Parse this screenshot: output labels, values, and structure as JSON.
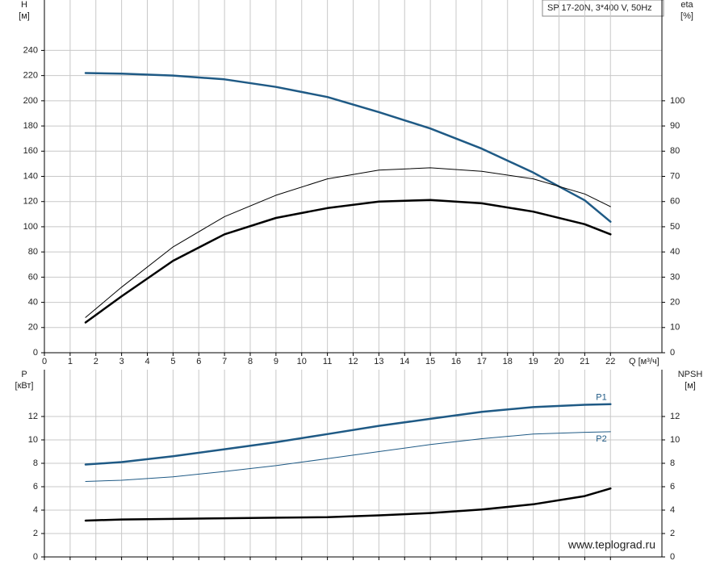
{
  "watermark": "www.teplograd.ru",
  "chart_data": [
    {
      "type": "line",
      "title": "SP 17-20N, 3*400 V, 50Hz",
      "xlabel": "Q [м³/ч]",
      "ylabel": "H",
      "yunit": "[м]",
      "y2label": "eta",
      "y2unit": "[%]",
      "x": [
        1.6,
        3,
        5,
        7,
        9,
        11,
        13,
        15,
        17,
        19,
        21,
        22
      ],
      "xlim": [
        0,
        24
      ],
      "xticks": [
        0,
        1,
        2,
        3,
        4,
        5,
        6,
        7,
        8,
        9,
        10,
        11,
        12,
        13,
        14,
        15,
        16,
        17,
        18,
        19,
        20,
        21,
        22
      ],
      "ylim": [
        0,
        280
      ],
      "yticks": [
        0,
        20,
        40,
        60,
        80,
        100,
        120,
        140,
        160,
        180,
        200,
        220,
        240
      ],
      "y2lim": [
        0,
        140
      ],
      "y2ticks": [
        0,
        10,
        20,
        30,
        40,
        50,
        60,
        70,
        80,
        90,
        100
      ],
      "grid": true,
      "series": [
        {
          "color": "#1f5a85",
          "linewidth": 2.5,
          "values": [
            222,
            221.5,
            220,
            217,
            211,
            203,
            191,
            178,
            162,
            143,
            121,
            104
          ]
        },
        {
          "color": "#000000",
          "linewidth": 1,
          "axis": "y2",
          "values": [
            14,
            26,
            42,
            54,
            62.5,
            69,
            72.5,
            73.4,
            72,
            69,
            63,
            58
          ]
        },
        {
          "color": "#000000",
          "linewidth": 2.5,
          "axis": "y2",
          "values": [
            12,
            22.4,
            36.5,
            47,
            53.5,
            57.4,
            60,
            60.6,
            59.3,
            56,
            51,
            47
          ]
        }
      ]
    },
    {
      "type": "line",
      "ylabel": "P",
      "yunit": "[кВт]",
      "y2label": "NPSH",
      "y2unit": "[м]",
      "x": [
        1.6,
        3,
        5,
        7,
        9,
        11,
        13,
        15,
        17,
        19,
        21,
        22
      ],
      "xlim": [
        0,
        24
      ],
      "xticks": [
        0,
        1,
        2,
        3,
        4,
        5,
        6,
        7,
        8,
        9,
        10,
        11,
        12,
        13,
        14,
        15,
        16,
        17,
        18,
        19,
        20,
        21,
        22
      ],
      "ylim": [
        0,
        16
      ],
      "yticks": [
        0,
        2,
        4,
        6,
        8,
        10,
        12
      ],
      "y2lim": [
        0,
        16
      ],
      "y2ticks": [
        0,
        2,
        4,
        6,
        8,
        10,
        12
      ],
      "grid": true,
      "series": [
        {
          "name": "P1",
          "color": "#1f5a85",
          "linewidth": 2.5,
          "values": [
            7.9,
            8.1,
            8.6,
            9.2,
            9.8,
            10.5,
            11.2,
            11.8,
            12.4,
            12.8,
            13.0,
            13.05
          ]
        },
        {
          "name": "P2",
          "color": "#1f5a85",
          "linewidth": 1,
          "values": [
            6.45,
            6.55,
            6.85,
            7.3,
            7.8,
            8.4,
            9.0,
            9.6,
            10.1,
            10.5,
            10.65,
            10.7
          ]
        },
        {
          "color": "#000000",
          "linewidth": 2.5,
          "axis": "y2",
          "values": [
            3.1,
            3.2,
            3.25,
            3.3,
            3.35,
            3.4,
            3.55,
            3.75,
            4.05,
            4.5,
            5.2,
            5.85
          ]
        }
      ]
    }
  ]
}
